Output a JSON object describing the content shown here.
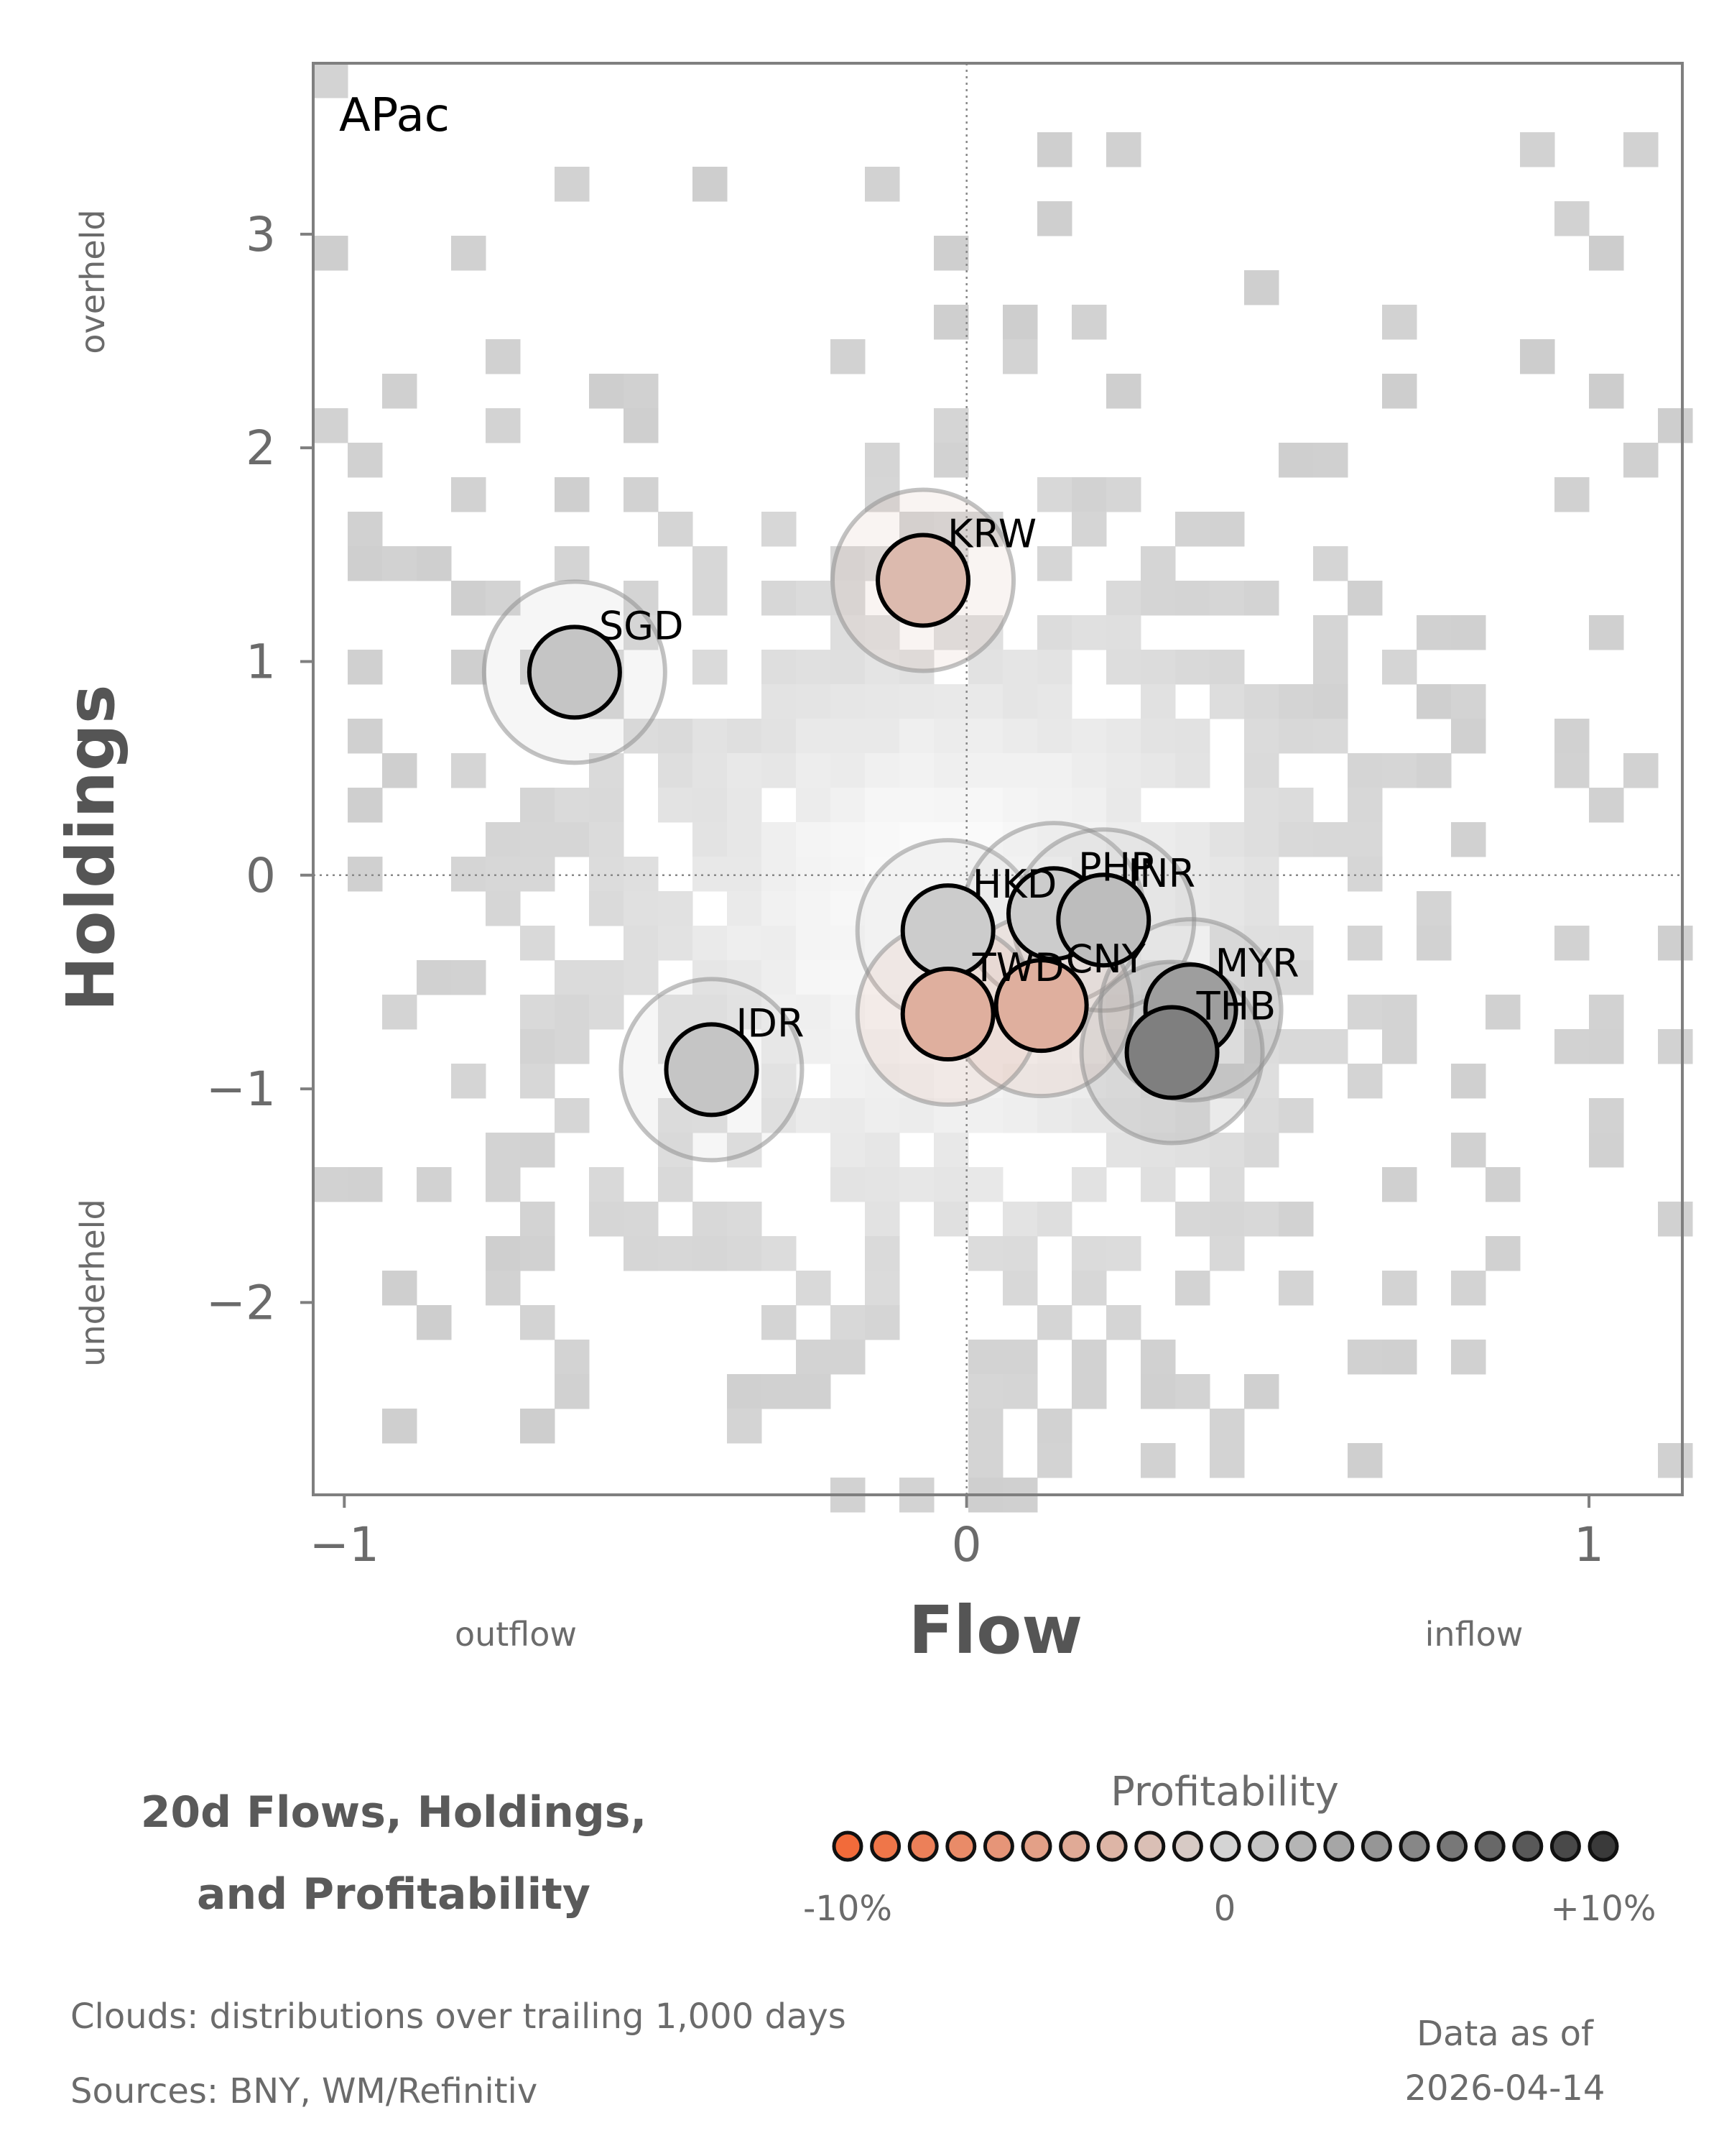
{
  "chart_data": {
    "type": "scatter",
    "panel_label": "APac",
    "xlabel": "Flow",
    "ylabel": "Holdings",
    "xlim": [
      -1.05,
      1.15
    ],
    "ylim": [
      -2.9,
      3.8
    ],
    "x_ticks": [
      -1,
      0,
      1
    ],
    "x_tick_labels": [
      "−1",
      "0",
      "1"
    ],
    "y_ticks": [
      -2,
      -1,
      0,
      1,
      2,
      3
    ],
    "y_tick_labels": [
      "−2",
      "−1",
      "0",
      "1",
      "2",
      "3"
    ],
    "x_side_labels": {
      "left": "outflow",
      "right": "inflow"
    },
    "y_side_labels": {
      "top": "overheld",
      "bottom": "underheld"
    },
    "reference_lines": {
      "x": 0,
      "y": 0,
      "style": "dotted"
    },
    "background": "heatmap cloud of trailing distributions",
    "points": [
      {
        "label": "KRW",
        "x": -0.07,
        "y": 1.38,
        "profitability": -2.5
      },
      {
        "label": "SGD",
        "x": -0.63,
        "y": 0.95,
        "profitability": 1.0
      },
      {
        "label": "HKD",
        "x": -0.03,
        "y": -0.26,
        "profitability": 0.5
      },
      {
        "label": "PHP",
        "x": 0.14,
        "y": -0.18,
        "profitability": 0.5
      },
      {
        "label": "INR",
        "x": 0.22,
        "y": -0.21,
        "profitability": 1.5
      },
      {
        "label": "CNY",
        "x": 0.12,
        "y": -0.61,
        "profitability": -3.5
      },
      {
        "label": "TWD",
        "x": -0.03,
        "y": -0.65,
        "profitability": -3.5
      },
      {
        "label": "MYR",
        "x": 0.36,
        "y": -0.63,
        "profitability": 3.5
      },
      {
        "label": "THB",
        "x": 0.33,
        "y": -0.83,
        "profitability": 5.5
      },
      {
        "label": "IDR",
        "x": -0.41,
        "y": -0.91,
        "profitability": 1.0
      }
    ],
    "title_lines": [
      "20d Flows, Holdings,",
      "and Profitability"
    ],
    "legend": {
      "title": "Profitability",
      "tick_labels": [
        "-10%",
        "0",
        "+10%"
      ],
      "range": [
        -10,
        10
      ],
      "steps": 21,
      "color_negative": "#f26b3a",
      "color_zero": "#d4d4d4",
      "color_positive": "#3a3a3a"
    }
  },
  "footnotes": {
    "clouds": "Clouds:  distributions over trailing 1,000 days",
    "sources": "Sources:  BNY, WM/Refinitiv"
  },
  "as_of": {
    "label": "Data as of",
    "date": "2026-04-14"
  }
}
